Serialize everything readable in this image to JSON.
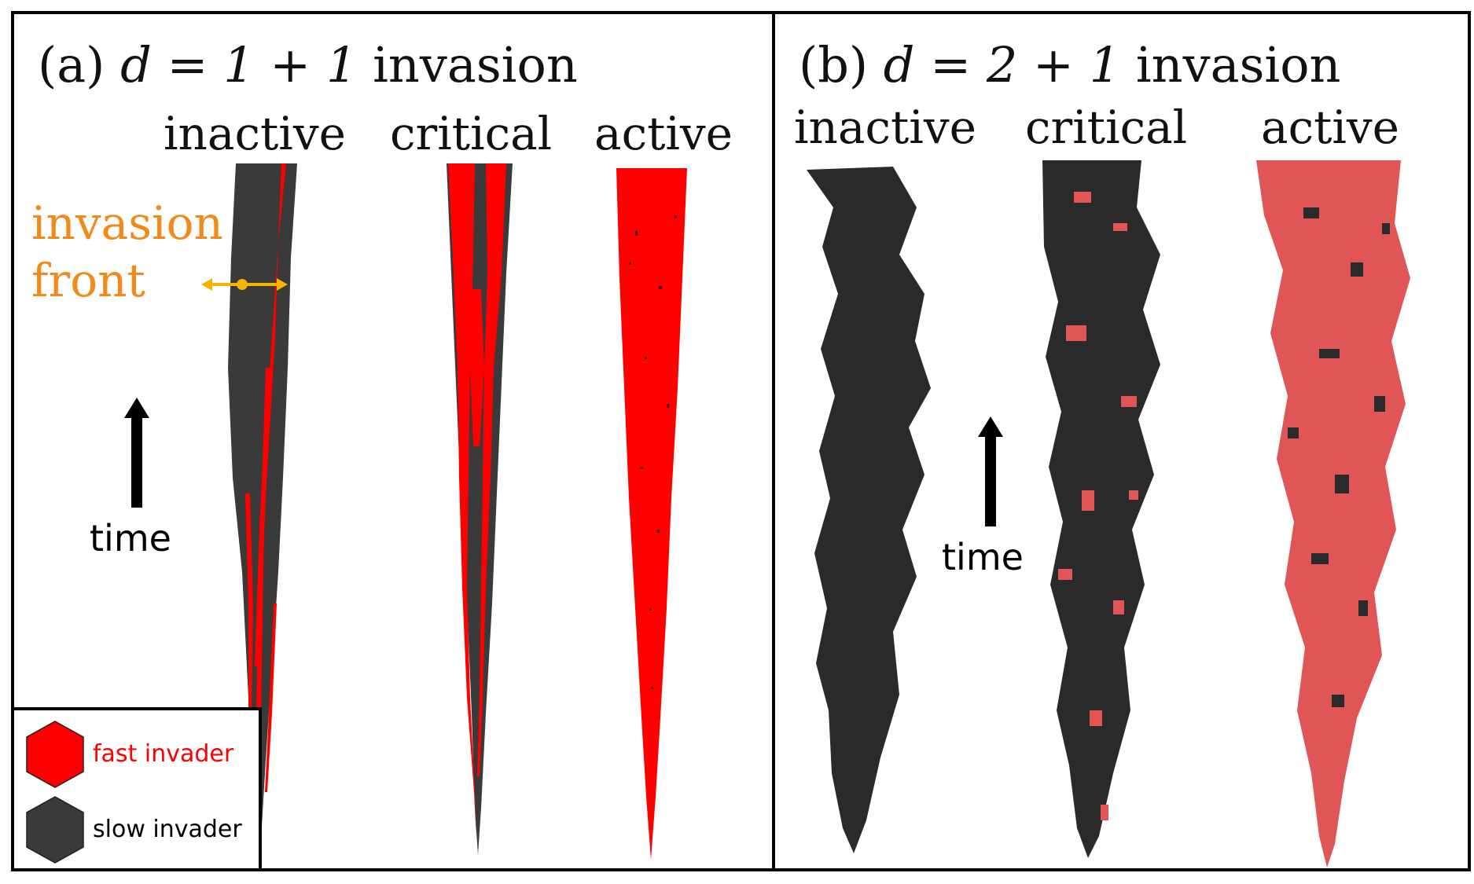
{
  "panel_a": {
    "title_prefix": "(a)",
    "title_math": "d = 1 + 1",
    "title_suffix": "invasion",
    "columns": [
      "inactive",
      "critical",
      "active"
    ],
    "annotation_line1": "invasion",
    "annotation_line2": "front",
    "time_label": "time"
  },
  "panel_b": {
    "title_prefix": "(b)",
    "title_math": "d = 2 + 1",
    "title_suffix": "invasion",
    "columns": [
      "inactive",
      "critical",
      "active"
    ],
    "time_label": "time"
  },
  "legend": {
    "fast_label": "fast invader",
    "slow_label": "slow invader"
  },
  "colors": {
    "fast": "#ff0000",
    "slow": "#3a3a3a",
    "fast_3d": "#e05555",
    "slow_3d": "#2a2a2a",
    "annotation": "#f28a1b",
    "arrow": "#f5b400"
  }
}
